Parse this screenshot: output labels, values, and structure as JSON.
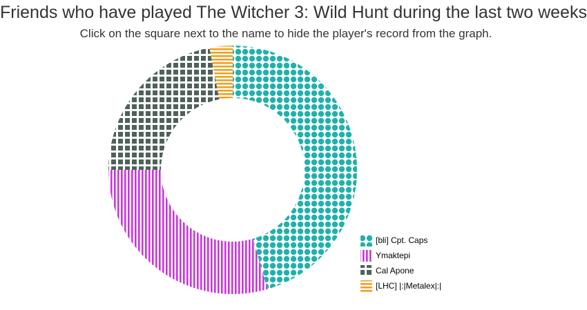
{
  "title": "Friends who have played The Witcher 3: Wild Hunt during the last two weeks",
  "subtitle": "Click on the square next to the name to hide the player's record from the graph.",
  "chart_data": {
    "type": "pie",
    "donut": true,
    "legend_position": "bottom-right",
    "slices": [
      {
        "label": "[bli] Cpt. Caps",
        "value": 45.5,
        "color": "#20B2AA",
        "pattern": "dots"
      },
      {
        "label": "Ymaktepi",
        "value": 29.5,
        "color": "#CC33DD",
        "pattern": "vertical-stripes"
      },
      {
        "label": "Cal Apone",
        "value": 22.0,
        "color": "#4F625A",
        "pattern": "squares"
      },
      {
        "label": "[LHC] |:|Metalex|:|",
        "value": 3.0,
        "color": "#F0A020",
        "pattern": "horizontal-stripes"
      }
    ]
  }
}
